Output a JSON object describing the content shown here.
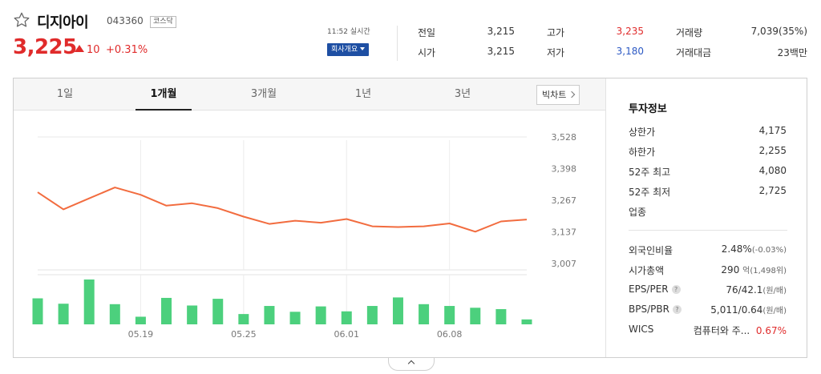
{
  "stock": {
    "name": "디지아이",
    "code": "043360",
    "market": "코스닥",
    "price": "3,225",
    "change": "10",
    "change_pct": "+0.31%",
    "realtime_time": "11:52 실시간",
    "company_button": "회사개요"
  },
  "quote": {
    "prev_close_label": "전일",
    "prev_close": "3,215",
    "high_label": "고가",
    "high": "3,235",
    "volume_label": "거래량",
    "volume": "7,039(35%)",
    "open_label": "시가",
    "open": "3,215",
    "low_label": "저가",
    "low": "3,180",
    "trade_value_label": "거래대금",
    "trade_value": "23백만"
  },
  "tabs": [
    "1일",
    "1개월",
    "3개월",
    "1년",
    "3년"
  ],
  "active_tab": "1개월",
  "big_chart_label": "빅차트",
  "invest": {
    "title": "투자정보",
    "upper_limit_label": "상한가",
    "upper_limit": "4,175",
    "lower_limit_label": "하한가",
    "lower_limit": "2,255",
    "high52_label": "52주 최고",
    "high52": "4,080",
    "low52_label": "52주 최저",
    "low52": "2,725",
    "industry_label": "업종",
    "foreign_label": "외국인비율",
    "foreign": "2.48%",
    "foreign_change": "(-0.03%)",
    "mktcap_label": "시가총액",
    "mktcap": "290",
    "mktcap_unit": "억(1,498위)",
    "eps_label": "EPS/PER",
    "eps": "76/42.1",
    "eps_unit": "(원/배)",
    "bps_label": "BPS/PBR",
    "bps": "5,011/0.64",
    "bps_unit": "(원/배)",
    "wics_label": "WICS",
    "wics": "컴퓨터와 주...",
    "wics_pct": "0.67%"
  },
  "colors": {
    "up": "#e02b2b",
    "down": "#2c59c4",
    "line": "#f26c3f",
    "volume": "#4cd07d"
  },
  "chart_data": {
    "type": "line",
    "y_ticks": [
      "3,528",
      "3,398",
      "3,267",
      "3,137",
      "3,007"
    ],
    "ylim": [
      3007,
      3528
    ],
    "x_tick_labels": [
      "05.19",
      "05.25",
      "06.01",
      "06.08"
    ],
    "x_tick_index": [
      4,
      8,
      12,
      16
    ],
    "series": [
      {
        "values": [
          3300,
          3230,
          3275,
          3320,
          3290,
          3245,
          3255,
          3235,
          3200,
          3170,
          3183,
          3175,
          3190,
          3160,
          3157,
          3160,
          3172,
          3138,
          3180,
          3188
        ]
      }
    ],
    "volume": {
      "type": "bar",
      "values": [
        0.58,
        0.46,
        1.0,
        0.45,
        0.17,
        0.59,
        0.42,
        0.57,
        0.23,
        0.41,
        0.28,
        0.4,
        0.29,
        0.41,
        0.6,
        0.45,
        0.41,
        0.37,
        0.34,
        0.11
      ]
    }
  }
}
